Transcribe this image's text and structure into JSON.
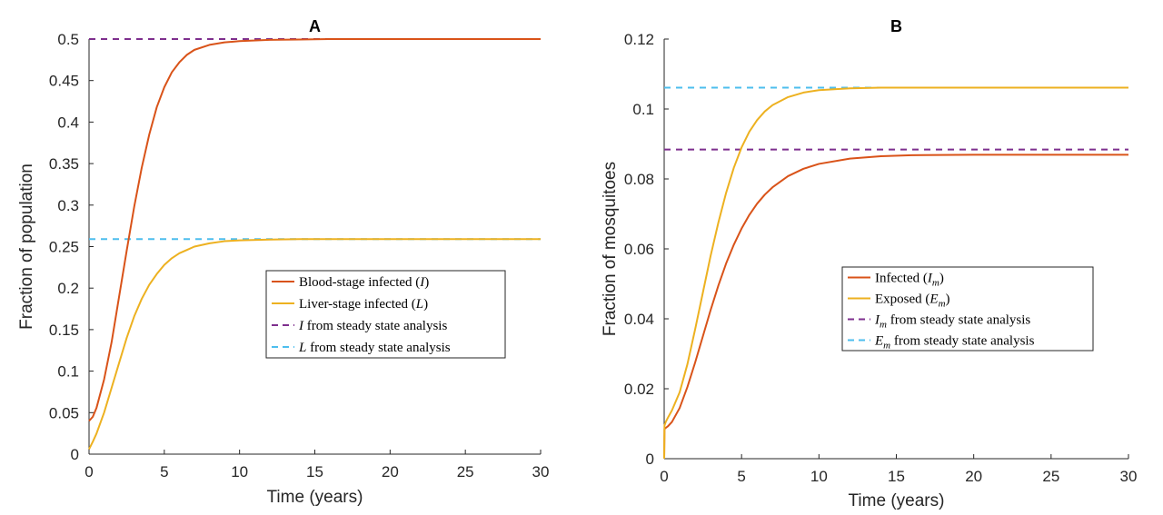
{
  "chart_data": [
    {
      "type": "line",
      "title": "A",
      "xlabel": "Time (years)",
      "ylabel": "Fraction of population",
      "xlim": [
        0,
        30
      ],
      "ylim": [
        0,
        0.5
      ],
      "xticks": [
        "0",
        "5",
        "10",
        "15",
        "20",
        "25",
        "30"
      ],
      "yticks": [
        "0",
        "0.05",
        "0.1",
        "0.15",
        "0.2",
        "0.25",
        "0.3",
        "0.35",
        "0.4",
        "0.45",
        "0.5"
      ],
      "legend_position": "center-right",
      "series": [
        {
          "name": "Blood-stage infected (I)",
          "legend_text": "Blood-stage infected (",
          "legend_var": "I",
          "legend_tail": ")",
          "color": "#d95319",
          "style": "solid",
          "x": [
            0,
            0.25,
            0.5,
            1,
            1.5,
            2,
            2.5,
            3,
            3.5,
            4,
            4.5,
            5,
            5.5,
            6,
            6.5,
            7,
            8,
            9,
            10,
            12,
            14,
            16,
            20,
            25,
            30
          ],
          "y": [
            0.04,
            0.045,
            0.056,
            0.09,
            0.135,
            0.19,
            0.245,
            0.298,
            0.345,
            0.385,
            0.418,
            0.442,
            0.46,
            0.472,
            0.481,
            0.487,
            0.493,
            0.496,
            0.4975,
            0.499,
            0.4995,
            0.5,
            0.5,
            0.5,
            0.5
          ]
        },
        {
          "name": "Liver-stage infected (L)",
          "legend_text": "Liver-stage infected (",
          "legend_var": "L",
          "legend_tail": ")",
          "color": "#edb120",
          "style": "solid",
          "x": [
            0,
            0.25,
            0.5,
            1,
            1.5,
            2,
            2.5,
            3,
            3.5,
            4,
            4.5,
            5,
            5.5,
            6,
            6.5,
            7,
            8,
            9,
            10,
            12,
            14,
            16,
            20,
            25,
            30
          ],
          "y": [
            0.006,
            0.015,
            0.025,
            0.05,
            0.08,
            0.11,
            0.14,
            0.166,
            0.187,
            0.204,
            0.217,
            0.228,
            0.236,
            0.242,
            0.246,
            0.25,
            0.254,
            0.2565,
            0.2575,
            0.2585,
            0.259,
            0.259,
            0.259,
            0.259,
            0.259
          ]
        },
        {
          "name": "I from steady state analysis",
          "legend_text": "",
          "legend_var": "I",
          "legend_tail": " from steady state analysis",
          "color": "#7e2f8e",
          "style": "dashed",
          "x": [
            0,
            30
          ],
          "y": [
            0.5,
            0.5
          ]
        },
        {
          "name": "L from steady state analysis",
          "legend_text": "",
          "legend_var": "L",
          "legend_tail": " from steady state analysis",
          "color": "#4dbeee",
          "style": "dashed",
          "x": [
            0,
            30
          ],
          "y": [
            0.259,
            0.259
          ]
        }
      ]
    },
    {
      "type": "line",
      "title": "B",
      "xlabel": "Time (years)",
      "ylabel": "Fraction of mosquitoes",
      "xlim": [
        0,
        30
      ],
      "ylim": [
        0,
        0.12
      ],
      "xticks": [
        "0",
        "5",
        "10",
        "15",
        "20",
        "25",
        "30"
      ],
      "yticks": [
        "0",
        "0.02",
        "0.04",
        "0.06",
        "0.08",
        "0.1",
        "0.12"
      ],
      "legend_position": "center-right",
      "series": [
        {
          "name": "Infected (I_m)",
          "legend_text": "Infected (",
          "legend_var": "I",
          "legend_sub": "m",
          "legend_tail": ")",
          "color": "#d95319",
          "style": "solid",
          "x": [
            0,
            0.02,
            0.1,
            0.25,
            0.5,
            1,
            1.5,
            2,
            2.5,
            3,
            3.5,
            4,
            4.5,
            5,
            5.5,
            6,
            6.5,
            7,
            8,
            9,
            10,
            12,
            14,
            16,
            20,
            25,
            30
          ],
          "y": [
            0,
            0.0085,
            0.0088,
            0.0093,
            0.0105,
            0.0145,
            0.0205,
            0.0275,
            0.035,
            0.0425,
            0.0495,
            0.0558,
            0.0612,
            0.0658,
            0.0697,
            0.0729,
            0.0755,
            0.0776,
            0.0808,
            0.0829,
            0.0843,
            0.0858,
            0.0865,
            0.0868,
            0.0869,
            0.0869,
            0.0869
          ]
        },
        {
          "name": "Exposed (E_m)",
          "legend_text": "Exposed (",
          "legend_var": "E",
          "legend_sub": "m",
          "legend_tail": ")",
          "color": "#edb120",
          "style": "solid",
          "x": [
            0,
            0.02,
            0.1,
            0.25,
            0.5,
            1,
            1.5,
            2,
            2.5,
            3,
            3.5,
            4,
            4.5,
            5,
            5.5,
            6,
            6.5,
            7,
            8,
            9,
            10,
            12,
            14,
            16,
            20,
            25,
            30
          ],
          "y": [
            0,
            0.0095,
            0.0105,
            0.0118,
            0.0138,
            0.019,
            0.027,
            0.037,
            0.0475,
            0.058,
            0.0675,
            0.076,
            0.0832,
            0.089,
            0.0935,
            0.0968,
            0.0993,
            0.1011,
            0.1034,
            0.1047,
            0.1054,
            0.1059,
            0.1061,
            0.1061,
            0.1061,
            0.1061,
            0.1061
          ]
        },
        {
          "name": "I_m from steady state analysis",
          "legend_text": "",
          "legend_var": "I",
          "legend_sub": "m",
          "legend_tail": " from steady state analysis",
          "color": "#7e2f8e",
          "style": "dashed",
          "x": [
            0,
            30
          ],
          "y": [
            0.0884,
            0.0884
          ]
        },
        {
          "name": "E_m from steady state analysis",
          "legend_text": "",
          "legend_var": "E",
          "legend_sub": "m",
          "legend_tail": " from steady state analysis",
          "color": "#4dbeee",
          "style": "dashed",
          "x": [
            0,
            30
          ],
          "y": [
            0.1061,
            0.1061
          ]
        }
      ]
    }
  ]
}
